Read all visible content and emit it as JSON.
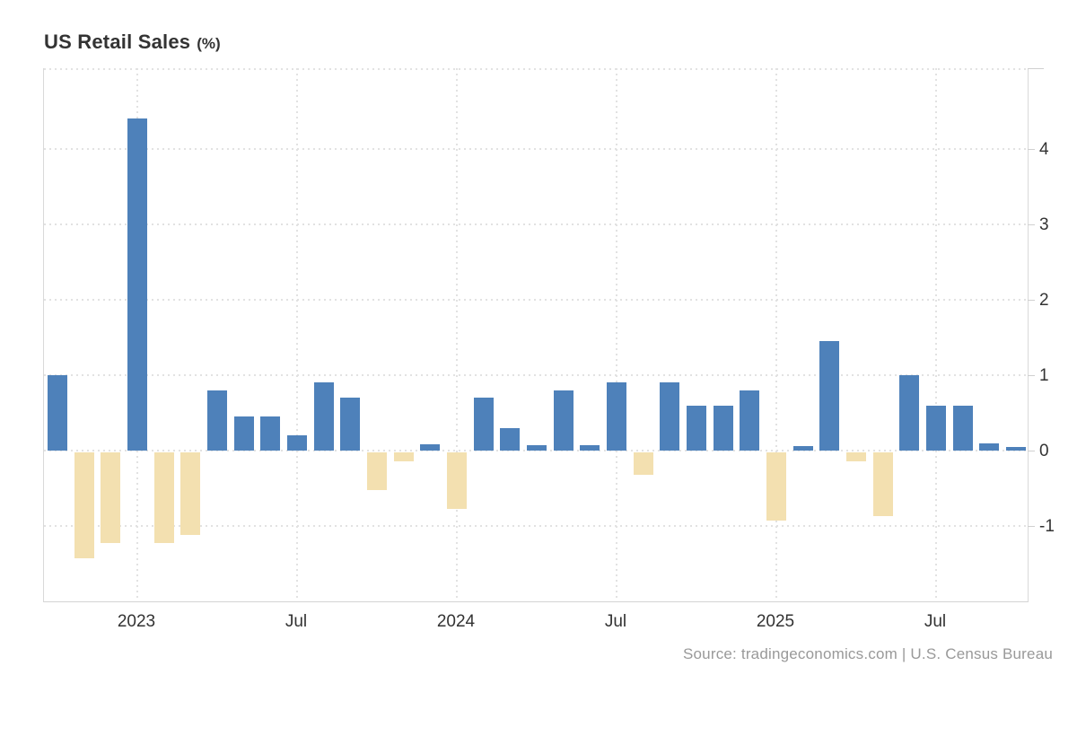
{
  "title": {
    "main": "US Retail Sales",
    "unit": "(%)"
  },
  "source": {
    "text": "Source: tradingeconomics.com | U.S. Census Bureau"
  },
  "chart_data": {
    "type": "bar",
    "title": "US Retail Sales (%)",
    "xlabel": "",
    "ylabel": "%",
    "grid": "dotted",
    "legend": "none",
    "ylim": [
      -2.07,
      5.07
    ],
    "y_ticks": [
      4,
      3,
      2,
      1,
      0,
      -1
    ],
    "x": [
      "Oct 2022",
      "Nov 2022",
      "Dec 2022",
      "Jan 2023",
      "Feb 2023",
      "Mar 2023",
      "Apr 2023",
      "May 2023",
      "Jun 2023",
      "Jul 2023",
      "Aug 2023",
      "Sep 2023",
      "Oct 2023",
      "Nov 2023",
      "Dec 2023",
      "Jan 2024",
      "Feb 2024",
      "Mar 2024",
      "Apr 2024",
      "May 2024",
      "Jun 2024",
      "Jul 2024",
      "Aug 2024",
      "Sep 2024",
      "Oct 2024",
      "Nov 2024",
      "Dec 2024",
      "Jan 2025",
      "Feb 2025",
      "Mar 2025",
      "Apr 2025",
      "May 2025",
      "Jun 2025",
      "Jul 2025",
      "Aug 2025",
      "Sep 2025",
      "Oct 2025"
    ],
    "values": [
      1.0,
      -1.4,
      -1.2,
      4.4,
      -1.2,
      -1.1,
      0.8,
      0.45,
      0.45,
      0.2,
      0.9,
      0.7,
      -0.5,
      -0.12,
      0.08,
      -0.75,
      0.7,
      0.3,
      0.07,
      0.8,
      0.07,
      0.9,
      -0.3,
      0.9,
      0.6,
      0.6,
      0.8,
      -0.9,
      0.06,
      1.45,
      -0.12,
      -0.85,
      1.0,
      0.6,
      0.6,
      0.1,
      0.05
    ],
    "x_tick_labels": [
      {
        "label": "2023",
        "index": 3
      },
      {
        "label": "Jul",
        "index": 9
      },
      {
        "label": "2024",
        "index": 15
      },
      {
        "label": "Jul",
        "index": 21
      },
      {
        "label": "2025",
        "index": 27
      },
      {
        "label": "Jul",
        "index": 33
      }
    ],
    "positive_color": "#4e81ba",
    "negative_color": "#f3e0b0"
  },
  "colors": {
    "gridline": "#e2e2e2",
    "axis_border": "#d9d9d9",
    "tick_label": "#333333",
    "title_text": "#333333",
    "source_text": "#999999",
    "background": "#ffffff"
  }
}
